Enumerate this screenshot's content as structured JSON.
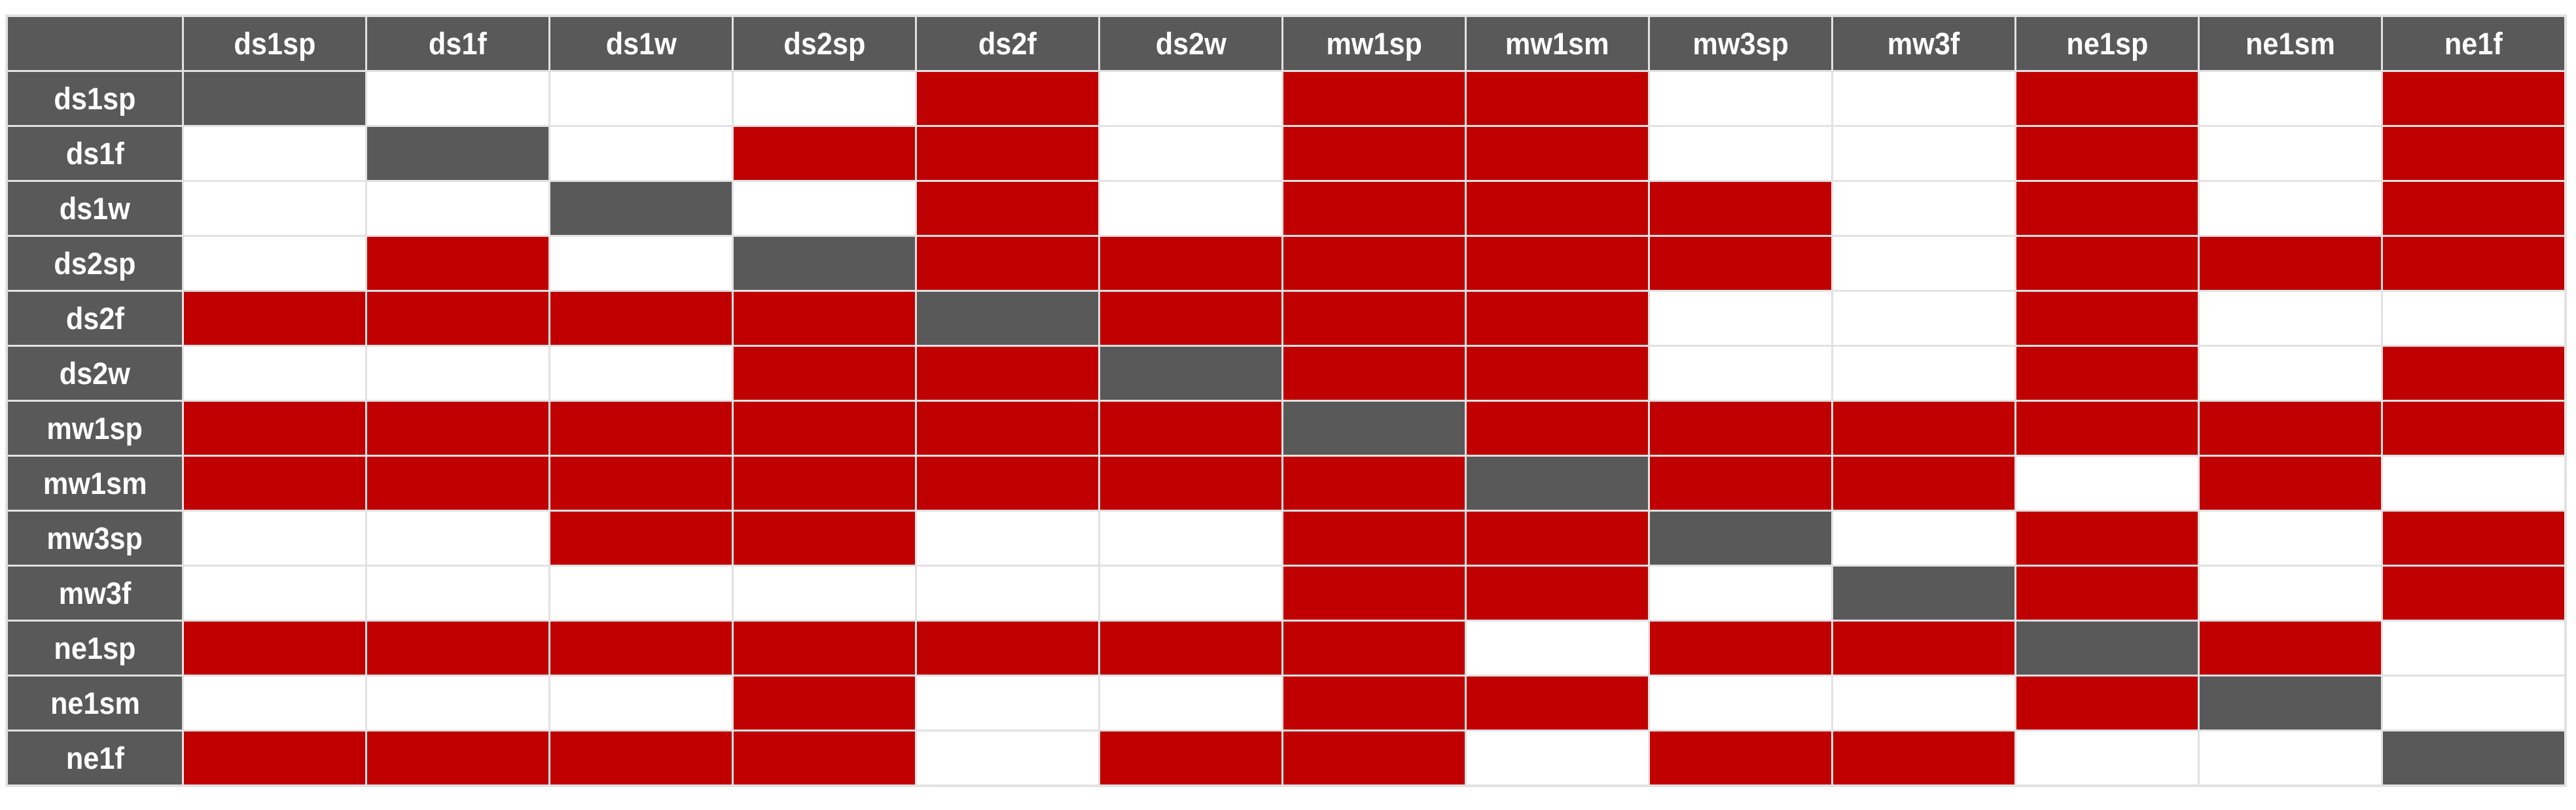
{
  "page": {
    "background": "#FFFFFF"
  },
  "chart_data": {
    "type": "heatmap",
    "title": "",
    "columns": [
      "ds1sp",
      "ds1f",
      "ds1w",
      "ds2sp",
      "ds2f",
      "ds2w",
      "mw1sp",
      "mw1sm",
      "mw3sp",
      "mw3f",
      "ne1sp",
      "ne1sm",
      "ne1f"
    ],
    "rows": [
      "ds1sp",
      "ds1f",
      "ds1w",
      "ds2sp",
      "ds2f",
      "ds2w",
      "mw1sp",
      "mw1sm",
      "mw3sp",
      "mw3f",
      "ne1sp",
      "ne1sm",
      "ne1f"
    ],
    "values": [
      [
        "D",
        0,
        0,
        0,
        1,
        0,
        1,
        1,
        0,
        0,
        1,
        0,
        1
      ],
      [
        0,
        "D",
        0,
        1,
        1,
        0,
        1,
        1,
        0,
        0,
        1,
        0,
        1
      ],
      [
        0,
        0,
        "D",
        0,
        1,
        0,
        1,
        1,
        1,
        0,
        1,
        0,
        1
      ],
      [
        0,
        1,
        0,
        "D",
        1,
        1,
        1,
        1,
        1,
        0,
        1,
        1,
        1
      ],
      [
        1,
        1,
        1,
        1,
        "D",
        1,
        1,
        1,
        0,
        0,
        1,
        0,
        0
      ],
      [
        0,
        0,
        0,
        1,
        1,
        "D",
        1,
        1,
        0,
        0,
        1,
        0,
        1
      ],
      [
        1,
        1,
        1,
        1,
        1,
        1,
        "D",
        1,
        1,
        1,
        1,
        1,
        1
      ],
      [
        1,
        1,
        1,
        1,
        1,
        1,
        1,
        "D",
        1,
        1,
        0,
        1,
        0
      ],
      [
        0,
        0,
        1,
        1,
        0,
        0,
        1,
        1,
        "D",
        0,
        1,
        0,
        1
      ],
      [
        0,
        0,
        0,
        0,
        0,
        0,
        1,
        1,
        0,
        "D",
        1,
        0,
        1
      ],
      [
        1,
        1,
        1,
        1,
        1,
        1,
        1,
        0,
        1,
        1,
        "D",
        1,
        0
      ],
      [
        0,
        0,
        0,
        1,
        0,
        0,
        1,
        1,
        0,
        0,
        1,
        "D",
        0
      ],
      [
        1,
        1,
        1,
        1,
        0,
        1,
        1,
        0,
        1,
        1,
        0,
        0,
        "D"
      ]
    ],
    "value_encoding": {
      "D": "gray-diagonal-cell",
      "1": "red-cell",
      "0": "white-cell"
    },
    "colors": {
      "header_bg": "#595959",
      "header_text": "#FFFFFF",
      "red_cell": "#C00000",
      "white_cell": "#FFFFFF",
      "diagonal_cell": "#595959",
      "grid_lines": "#E2E2E2"
    },
    "legend_position": "none",
    "grid": true
  }
}
